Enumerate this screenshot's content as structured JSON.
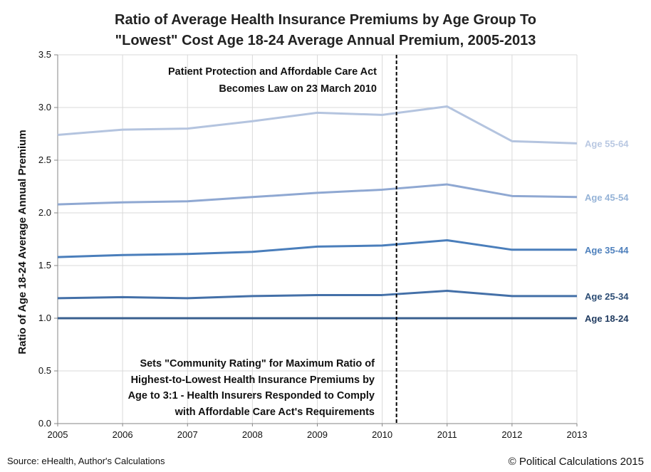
{
  "chart_data": {
    "type": "line",
    "title": [
      "Ratio of Average Health Insurance Premiums by Age Group To",
      "\"Lowest\" Cost Age 18-24 Average Annual Premium, 2005-2013"
    ],
    "xlabel": "",
    "ylabel": "Ratio of Age 18-24 Average Annual Premium",
    "x": [
      2005,
      2006,
      2007,
      2008,
      2009,
      2010,
      2011,
      2012,
      2013
    ],
    "x_ticks": [
      "2005",
      "2006",
      "2007",
      "2008",
      "2009",
      "2010",
      "2011",
      "2012",
      "2013"
    ],
    "ylim": [
      0,
      3.5
    ],
    "y_ticks": [
      "0.0",
      "0.5",
      "1.0",
      "1.5",
      "2.0",
      "2.5",
      "3.0",
      "3.5"
    ],
    "grid": true,
    "legend": "direct labels at right",
    "series": [
      {
        "name": "Age 55-64",
        "color": "#b4c4df",
        "label_color": "#b9c8e2",
        "values": [
          2.74,
          2.79,
          2.8,
          2.87,
          2.95,
          2.93,
          3.01,
          2.68,
          2.66
        ]
      },
      {
        "name": "Age 45-54",
        "color": "#8fa8d2",
        "label_color": "#95b3d7",
        "values": [
          2.08,
          2.1,
          2.11,
          2.15,
          2.19,
          2.22,
          2.27,
          2.16,
          2.15
        ]
      },
      {
        "name": "Age 35-44",
        "color": "#4a7ebb",
        "label_color": "#4f81bd",
        "values": [
          1.58,
          1.6,
          1.61,
          1.63,
          1.68,
          1.69,
          1.74,
          1.65,
          1.65
        ]
      },
      {
        "name": "Age 25-34",
        "color": "#4470a8",
        "label_color": "#2c4d75",
        "values": [
          1.19,
          1.2,
          1.19,
          1.21,
          1.22,
          1.22,
          1.26,
          1.21,
          1.21
        ]
      },
      {
        "name": "Age 18-24",
        "color": "#3a5f8f",
        "label_color": "#1f3a5f",
        "values": [
          1.0,
          1.0,
          1.0,
          1.0,
          1.0,
          1.0,
          1.0,
          1.0,
          1.0
        ]
      }
    ],
    "vline": {
      "x": 2010.22,
      "style": "dashed",
      "color": "#000000"
    },
    "annotations": {
      "top": [
        "Patient Protection and Affordable Care Act",
        "Becomes Law on 23 March 2010"
      ],
      "bottom": [
        "Sets \"Community Rating\" for Maximum Ratio of",
        "Highest-to-Lowest Health Insurance Premiums by",
        "Age to 3:1 - Health Insurers Responded to Comply",
        "with Affordable Care Act's Requirements"
      ]
    }
  },
  "footer": {
    "source": "Source: eHealth, Author's Calculations",
    "copyright": "© Political Calculations 2015"
  }
}
